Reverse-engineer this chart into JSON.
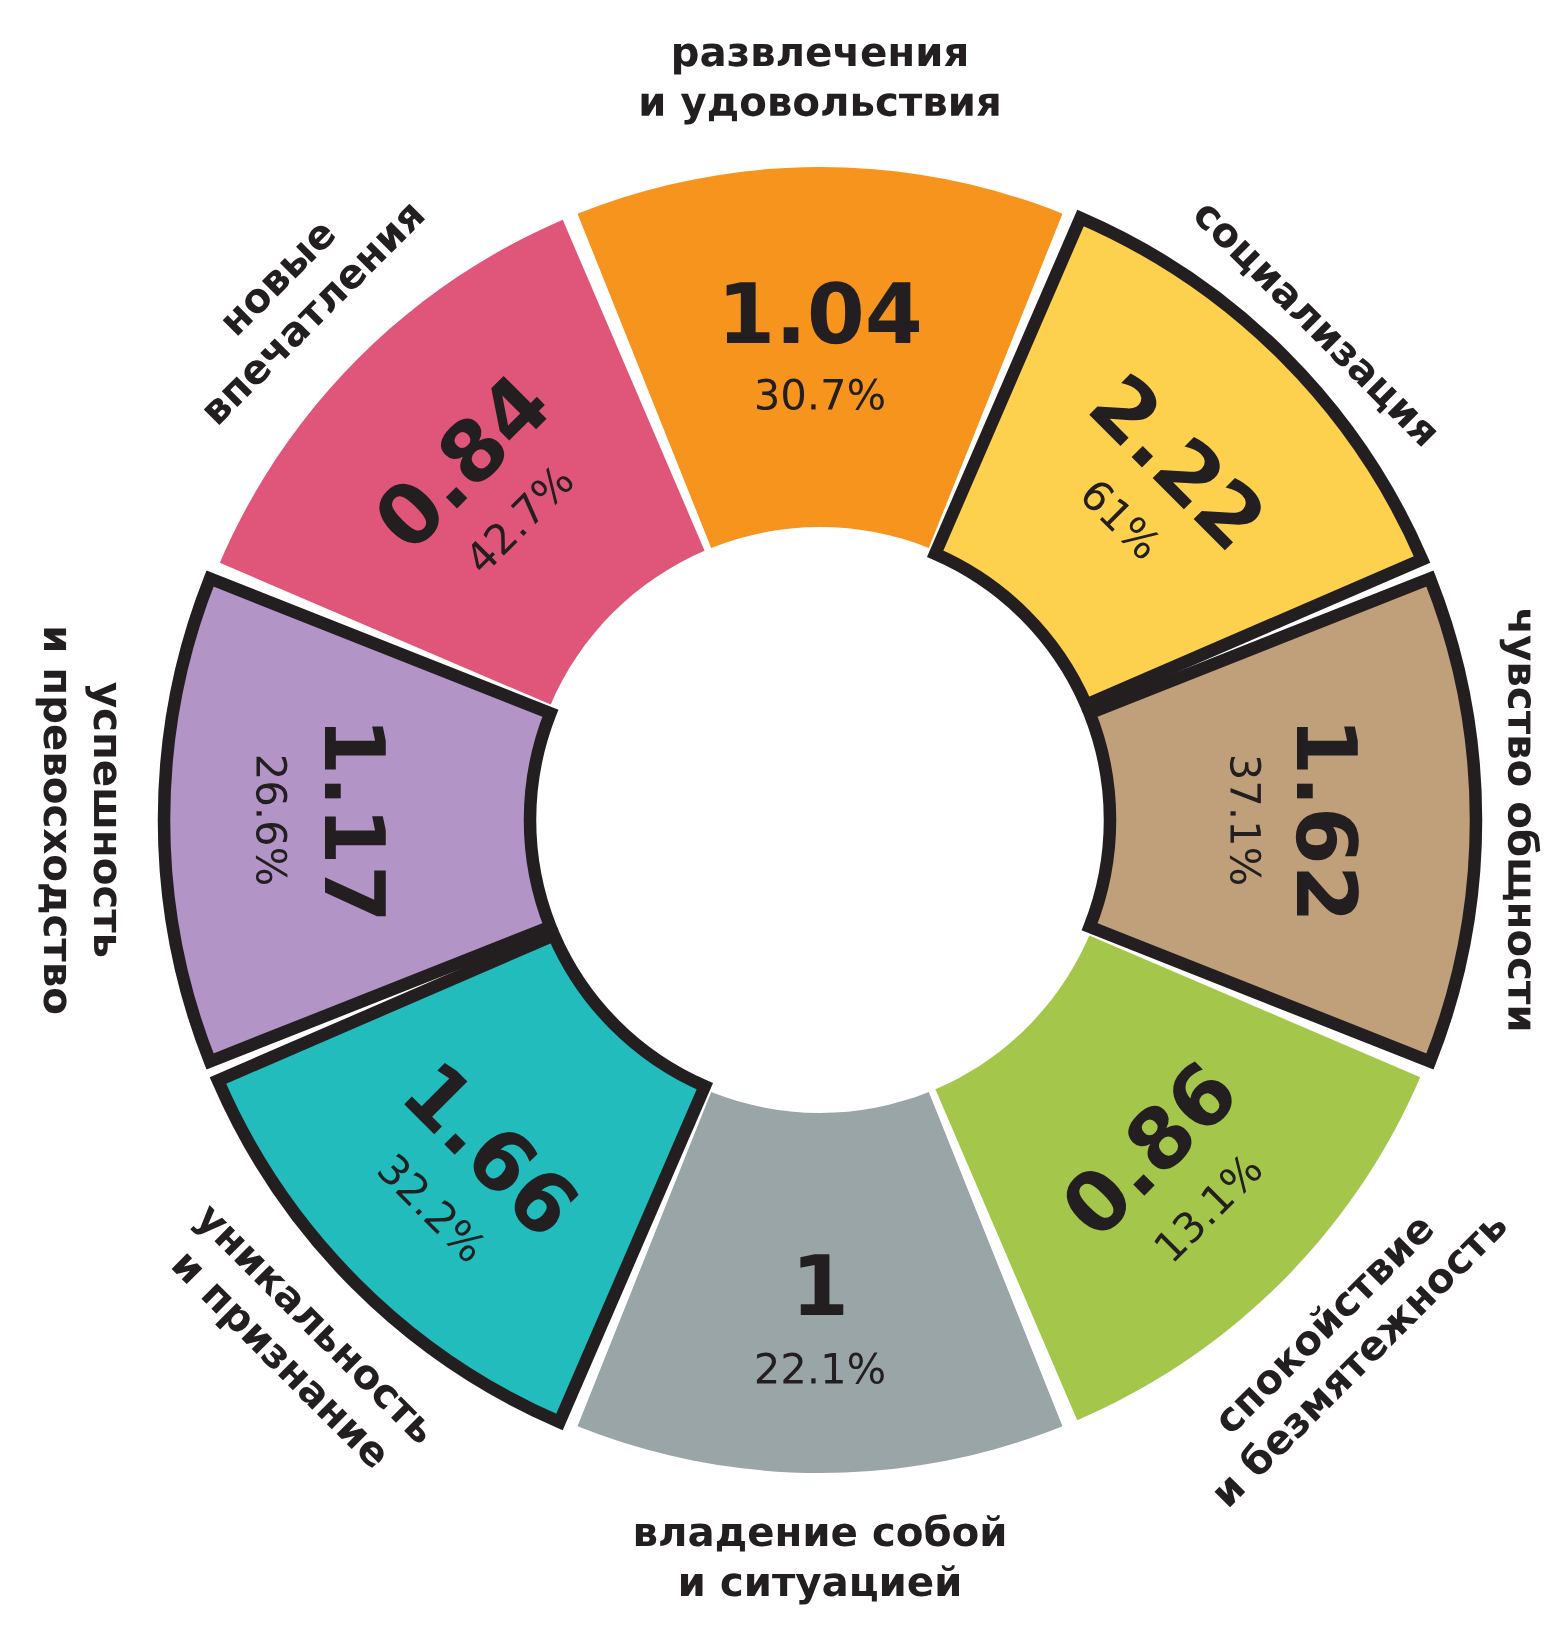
{
  "chart_data": {
    "type": "other",
    "categories": [
      "развлечения\nи удовольствия",
      "социализация",
      "чувство общности",
      "спокойствие\nи безмятежность",
      "владение собой\nи ситуацией",
      "уникальность\nи признание",
      "успешность\nи превосходство",
      "новые\nвпечатления"
    ],
    "series": [
      {
        "values": [
          1.04,
          2.22,
          1.62,
          0.86,
          1,
          1.66,
          1.17,
          0.84
        ],
        "colors": [
          "#f7941d",
          "#fdd04d",
          "#c0a07a",
          "#a3c64b",
          "#9aa5a8",
          "#22bcbc",
          "#b294c7",
          "#e0567a"
        ]
      },
      {
        "values": [
          30.7,
          61,
          37.1,
          13.1,
          22.1,
          32.2,
          26.6,
          42.7
        ],
        "colors": [
          null,
          "#231f20",
          "#231f20",
          null,
          null,
          "#231f20",
          "#231f20",
          null
        ],
        "value_labels": [
          "30.7%",
          "61%",
          "37.1%",
          "13.1%",
          "22.1%",
          "32.2%",
          "26.6%",
          "42.7%"
        ]
      }
    ],
    "data_labels": true
  }
}
